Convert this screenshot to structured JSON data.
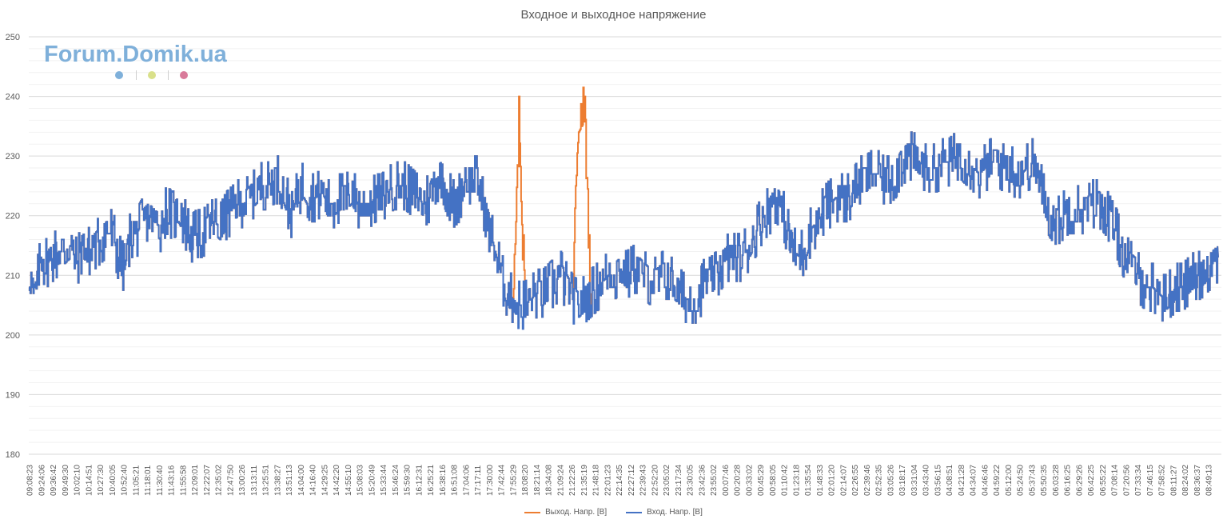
{
  "chart_data": {
    "type": "line",
    "title": "Входное и выходное напряжение",
    "ylim": [
      180,
      250
    ],
    "y_ticks": [
      180,
      190,
      200,
      210,
      220,
      230,
      240,
      250
    ],
    "grid": true,
    "legend_position": "bottom",
    "x_tick_labels": [
      "09:08:23",
      "09:24:06",
      "09:36:42",
      "09:49:30",
      "10:02:10",
      "10:14:51",
      "10:27:30",
      "10:40:05",
      "10:52:40",
      "11:05:21",
      "11:18:01",
      "11:30:40",
      "11:43:16",
      "11:55:58",
      "12:09:01",
      "12:22:07",
      "12:35:02",
      "12:47:50",
      "13:00:26",
      "13:13:11",
      "13:25:51",
      "13:38:27",
      "13:51:13",
      "14:04:00",
      "14:16:40",
      "14:29:25",
      "14:42:20",
      "14:55:10",
      "15:08:03",
      "15:20:49",
      "15:33:44",
      "15:46:24",
      "15:59:30",
      "16:12:31",
      "16:25:21",
      "16:38:16",
      "16:51:08",
      "17:04:06",
      "17:17:11",
      "17:30:00",
      "17:42:44",
      "17:55:29",
      "18:08:20",
      "18:21:14",
      "18:34:08",
      "21:09:24",
      "21:22:26",
      "21:35:19",
      "21:48:18",
      "22:01:23",
      "22:14:35",
      "22:27:12",
      "22:39:43",
      "22:52:20",
      "23:05:02",
      "23:17:34",
      "23:30:05",
      "23:42:36",
      "23:55:02",
      "00:07:46",
      "00:20:28",
      "00:33:02",
      "00:45:29",
      "00:58:05",
      "01:10:42",
      "01:23:18",
      "01:35:54",
      "01:48:33",
      "02:01:20",
      "02:14:07",
      "02:26:55",
      "02:39:46",
      "02:52:35",
      "03:05:26",
      "03:18:17",
      "03:31:04",
      "03:43:40",
      "03:56:15",
      "04:08:51",
      "04:21:28",
      "04:34:07",
      "04:46:46",
      "04:59:22",
      "05:12:00",
      "05:24:50",
      "05:37:43",
      "05:50:35",
      "06:03:28",
      "06:16:25",
      "06:29:26",
      "06:42:25",
      "06:55:22",
      "07:08:14",
      "07:20:56",
      "07:33:34",
      "07:46:15",
      "07:58:52",
      "08:11:27",
      "08:24:02",
      "08:36:37",
      "08:49:13"
    ],
    "series": [
      {
        "name": "Вход. Напр. [В]",
        "color": "#4472c4",
        "values": [
          210,
          206,
          213,
          212,
          213,
          214,
          214,
          215,
          212,
          215,
          214,
          215,
          216,
          217,
          217,
          213,
          211,
          217,
          217,
          219,
          220,
          219,
          218,
          221,
          220,
          221,
          219,
          216,
          217,
          217,
          218,
          219,
          218,
          220,
          221,
          222,
          222,
          223,
          224,
          225,
          225,
          226,
          226,
          223,
          220,
          224,
          225,
          223,
          223,
          224,
          222,
          222,
          223,
          223,
          224,
          222,
          222,
          222,
          223,
          223,
          224,
          225,
          225,
          225,
          224,
          223,
          222,
          223,
          226,
          227,
          224,
          222,
          223,
          226,
          226,
          226,
          222,
          218,
          214,
          210,
          207,
          206,
          205,
          205,
          206,
          207,
          207,
          208,
          209,
          210,
          208,
          206,
          205,
          206,
          207,
          208,
          209,
          210,
          210,
          211,
          210,
          211,
          211,
          210,
          209,
          209,
          210,
          210,
          208,
          207,
          206,
          206,
          206,
          209,
          209,
          210,
          212,
          213,
          213,
          213,
          214,
          216,
          218,
          220,
          221,
          223,
          221,
          217,
          214,
          213,
          215,
          218,
          219,
          221,
          222,
          223,
          223,
          223,
          224,
          226,
          226,
          227,
          227,
          226,
          226,
          227,
          229,
          230,
          230,
          229,
          228,
          228,
          228,
          229,
          229,
          230,
          230,
          229,
          228,
          227,
          228,
          229,
          229,
          228,
          228,
          227,
          227,
          228,
          229,
          226,
          222,
          220,
          219,
          220,
          221,
          221,
          221,
          221,
          222,
          222,
          221,
          219,
          217,
          214,
          212,
          211,
          209,
          208,
          208,
          207,
          206,
          207,
          208,
          208,
          209,
          210,
          210,
          211,
          212,
          213
        ]
      },
      {
        "name": "Выход. Напр. [В]",
        "color": "#ed7d31",
        "values": [
          210,
          206,
          213,
          212,
          213,
          214,
          214,
          215,
          212,
          215,
          214,
          215,
          216,
          217,
          217,
          213,
          211,
          217,
          217,
          219,
          220,
          219,
          218,
          221,
          220,
          221,
          219,
          216,
          217,
          217,
          218,
          219,
          218,
          220,
          221,
          222,
          222,
          223,
          224,
          225,
          225,
          226,
          226,
          223,
          220,
          224,
          225,
          223,
          223,
          224,
          222,
          222,
          223,
          223,
          224,
          222,
          222,
          222,
          223,
          223,
          224,
          225,
          225,
          225,
          224,
          223,
          222,
          223,
          226,
          227,
          224,
          222,
          223,
          226,
          226,
          226,
          222,
          218,
          214,
          210,
          207,
          206,
          236,
          205,
          206,
          207,
          207,
          208,
          209,
          210,
          208,
          206,
          236,
          238,
          207,
          208,
          209,
          210,
          210,
          211,
          210,
          211,
          211,
          210,
          209,
          209,
          210,
          210,
          208,
          207,
          206,
          206,
          206,
          209,
          209,
          210,
          212,
          213,
          213,
          213,
          214,
          216,
          218,
          220,
          221,
          223,
          221,
          217,
          214,
          213,
          215,
          218,
          219,
          221,
          222,
          223,
          223,
          223,
          224,
          226,
          226,
          227,
          227,
          226,
          226,
          227,
          229,
          230,
          230,
          229,
          228,
          228,
          228,
          229,
          229,
          230,
          230,
          229,
          228,
          227,
          228,
          229,
          229,
          228,
          228,
          227,
          227,
          228,
          229,
          226,
          222,
          220,
          219,
          220,
          221,
          221,
          221,
          221,
          222,
          222,
          221,
          219,
          217,
          214,
          212,
          211,
          209,
          208,
          208,
          207,
          206,
          207,
          208,
          208,
          209,
          210,
          210,
          211,
          212,
          213
        ]
      }
    ]
  },
  "watermark": {
    "text": "Forum.Domik.ua",
    "dot_colors": [
      "#7fb0da",
      "#d9e08a",
      "#d97a9a"
    ]
  }
}
